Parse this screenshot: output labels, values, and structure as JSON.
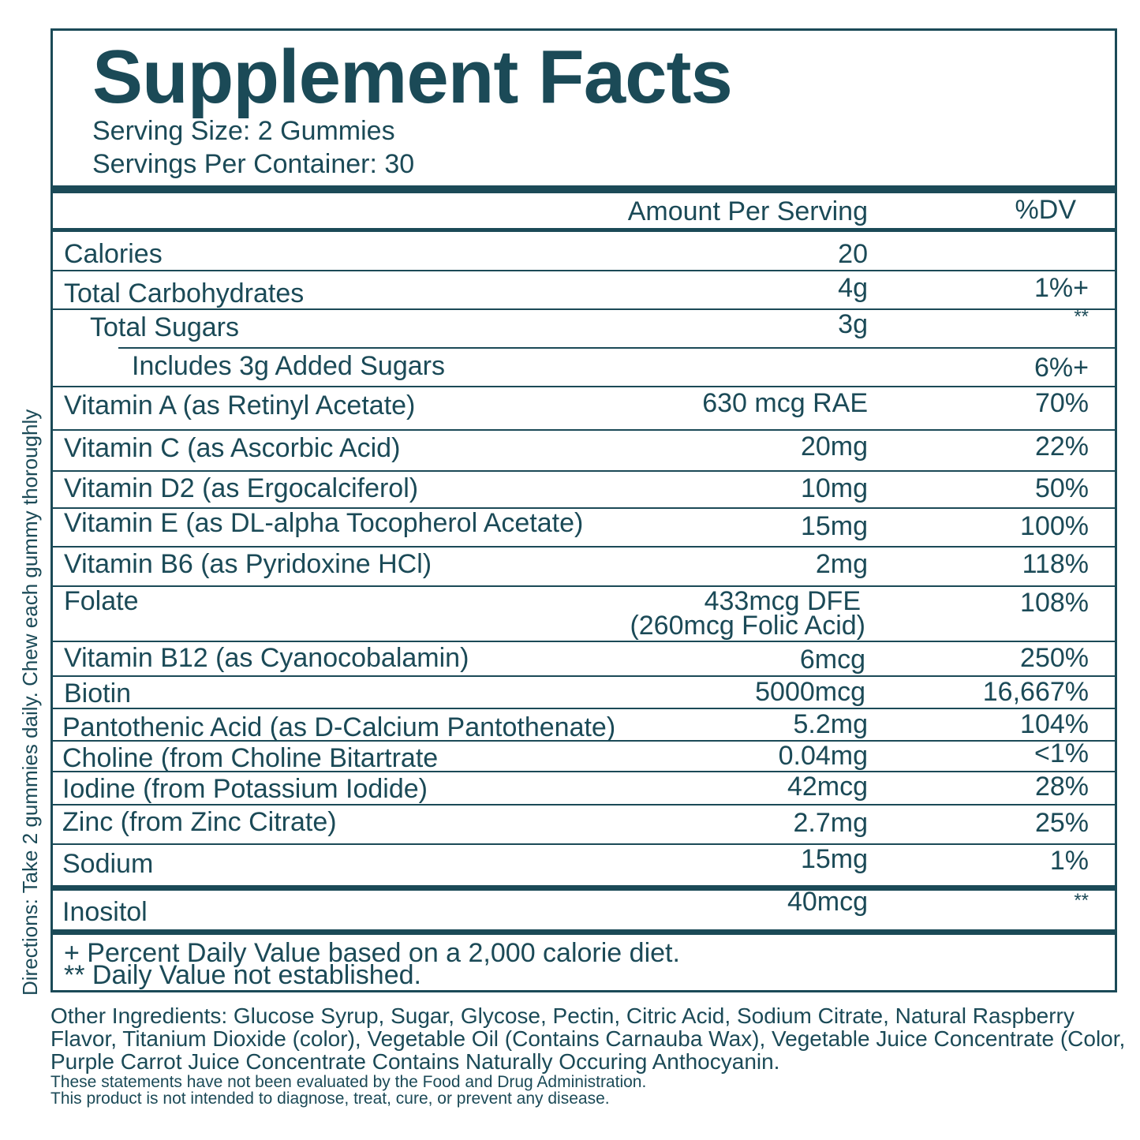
{
  "title": "Supplement Facts",
  "serving_size": "Serving Size: 2 Gummies",
  "servings_per_container": "Servings Per Container: 30",
  "header": {
    "amount": "Amount Per Serving",
    "dv": "%DV"
  },
  "rows": [
    {
      "name": "Calories",
      "amount": "20",
      "dv": ""
    },
    {
      "name": "Total Carbohydrates",
      "amount": "4g",
      "dv": "1%+"
    },
    {
      "name": "Total Sugars",
      "amount": "3g",
      "dv": "**"
    },
    {
      "name": "Includes 3g Added Sugars",
      "amount": "",
      "dv": "6%+"
    },
    {
      "name": "Vitamin A (as Retinyl Acetate)",
      "amount": "630 mcg RAE",
      "dv": "70%"
    },
    {
      "name": "Vitamin C (as Ascorbic Acid)",
      "amount": "20mg",
      "dv": "22%"
    },
    {
      "name": "Vitamin D2 (as Ergocalciferol)",
      "amount": "10mg",
      "dv": "50%"
    },
    {
      "name": "Vitamin E (as DL-alpha Tocopherol Acetate)",
      "amount": "15mg",
      "dv": "100%"
    },
    {
      "name": "Vitamin B6 (as Pyridoxine HCl)",
      "amount": "2mg",
      "dv": "118%"
    },
    {
      "name": "Folate",
      "amount": "433mcg DFE",
      "amount_sub": "(260mcg Folic Acid)",
      "dv": "108%"
    },
    {
      "name": "Vitamin B12 (as Cyanocobalamin)",
      "amount": "6mcg",
      "dv": "250%"
    },
    {
      "name": "Biotin",
      "amount": "5000mcg",
      "dv": "16,667%"
    },
    {
      "name": "Pantothenic Acid (as D-Calcium Pantothenate)",
      "amount": "5.2mg",
      "dv": "104%"
    },
    {
      "name": "Choline (from Choline Bitartrate",
      "amount": "0.04mg",
      "dv": "<1%"
    },
    {
      "name": "Iodine (from Potassium Iodide)",
      "amount": "42mcg",
      "dv": "28%"
    },
    {
      "name": "Zinc (from Zinc Citrate)",
      "amount": "2.7mg",
      "dv": "25%"
    },
    {
      "name": "Sodium",
      "amount": "15mg",
      "dv": "1%"
    },
    {
      "name": "Inositol",
      "amount": "40mcg",
      "dv": "**"
    }
  ],
  "footnotes": [
    "+ Percent Daily Value based on a 2,000 calorie diet.",
    "** Daily Value not established."
  ],
  "directions": "Directions: Take 2 gummies daily. Chew each gummy thoroughly",
  "other_ingredients": "Other Ingredients: Glucose Syrup, Sugar, Glycose, Pectin, Citric Acid, Sodium Citrate, Natural Raspberry Flavor, Titanium Dioxide (color), Vegetable Oil (Contains Carnauba Wax), Vegetable Juice Concentrate (Color, Purple Carrot Juice Concentrate Contains Naturally Occuring Anthocyanin.",
  "disclaimer": [
    "These statements have not been evaluated by the Food and Drug Administration.",
    "This product is not intended to diagnose, treat, cure, or prevent any disease."
  ],
  "colors": {
    "ink": "#1b4a57",
    "background": "#ffffff"
  }
}
